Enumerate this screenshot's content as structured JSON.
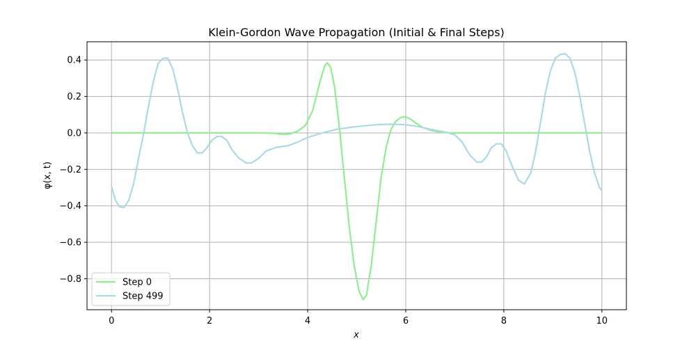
{
  "chart_data": {
    "type": "line",
    "title": "Klein-Gordon Wave Propagation (Initial & Final Steps)",
    "xlabel": "x",
    "ylabel": "φ(x, t)",
    "xlim": [
      -0.5,
      10.5
    ],
    "ylim": [
      -0.97,
      0.5
    ],
    "xticks": [
      0,
      2,
      4,
      6,
      8,
      10
    ],
    "xtick_labels": [
      "0",
      "2",
      "4",
      "6",
      "8",
      "10"
    ],
    "yticks": [
      -0.8,
      -0.6,
      -0.4,
      -0.2,
      0.0,
      0.2,
      0.4
    ],
    "ytick_labels": [
      "−0.8",
      "−0.6",
      "−0.4",
      "−0.2",
      "0.0",
      "0.2",
      "0.4"
    ],
    "grid": true,
    "legend_position": "lower-left",
    "series": [
      {
        "name": "Step 0",
        "color": "#90EE90",
        "points": [
          [
            0,
            0
          ],
          [
            1,
            0
          ],
          [
            2,
            0
          ],
          [
            3,
            0
          ],
          [
            3.3,
            -0.002
          ],
          [
            3.5,
            -0.008
          ],
          [
            3.65,
            -0.005
          ],
          [
            3.8,
            0.01
          ],
          [
            3.95,
            0.04
          ],
          [
            4.1,
            0.12
          ],
          [
            4.25,
            0.28
          ],
          [
            4.35,
            0.37
          ],
          [
            4.4,
            0.385
          ],
          [
            4.47,
            0.36
          ],
          [
            4.55,
            0.25
          ],
          [
            4.65,
            0.02
          ],
          [
            4.75,
            -0.25
          ],
          [
            4.85,
            -0.52
          ],
          [
            4.95,
            -0.73
          ],
          [
            5.05,
            -0.87
          ],
          [
            5.13,
            -0.915
          ],
          [
            5.2,
            -0.89
          ],
          [
            5.3,
            -0.72
          ],
          [
            5.4,
            -0.48
          ],
          [
            5.5,
            -0.24
          ],
          [
            5.6,
            -0.08
          ],
          [
            5.7,
            0.02
          ],
          [
            5.8,
            0.065
          ],
          [
            5.9,
            0.085
          ],
          [
            6.0,
            0.088
          ],
          [
            6.1,
            0.075
          ],
          [
            6.2,
            0.055
          ],
          [
            6.35,
            0.03
          ],
          [
            6.5,
            0.015
          ],
          [
            6.7,
            0.004
          ],
          [
            6.9,
            0
          ],
          [
            8,
            0
          ],
          [
            10,
            0
          ]
        ]
      },
      {
        "name": "Step 499",
        "color": "#ADD8E6",
        "points": [
          [
            0,
            -0.295
          ],
          [
            0.08,
            -0.37
          ],
          [
            0.16,
            -0.405
          ],
          [
            0.25,
            -0.41
          ],
          [
            0.35,
            -0.37
          ],
          [
            0.45,
            -0.28
          ],
          [
            0.55,
            -0.14
          ],
          [
            0.65,
            -0.01
          ],
          [
            0.75,
            0.14
          ],
          [
            0.85,
            0.28
          ],
          [
            0.95,
            0.38
          ],
          [
            1.05,
            0.41
          ],
          [
            1.15,
            0.41
          ],
          [
            1.25,
            0.35
          ],
          [
            1.35,
            0.24
          ],
          [
            1.45,
            0.11
          ],
          [
            1.55,
            0.0
          ],
          [
            1.65,
            -0.07
          ],
          [
            1.75,
            -0.11
          ],
          [
            1.85,
            -0.11
          ],
          [
            1.95,
            -0.08
          ],
          [
            2.05,
            -0.04
          ],
          [
            2.15,
            -0.02
          ],
          [
            2.25,
            -0.02
          ],
          [
            2.35,
            -0.04
          ],
          [
            2.45,
            -0.09
          ],
          [
            2.6,
            -0.14
          ],
          [
            2.75,
            -0.165
          ],
          [
            2.85,
            -0.165
          ],
          [
            3.0,
            -0.14
          ],
          [
            3.15,
            -0.1
          ],
          [
            3.35,
            -0.08
          ],
          [
            3.6,
            -0.07
          ],
          [
            3.8,
            -0.05
          ],
          [
            4.0,
            -0.025
          ],
          [
            4.3,
            0.0
          ],
          [
            4.6,
            0.02
          ],
          [
            5.0,
            0.035
          ],
          [
            5.4,
            0.045
          ],
          [
            5.7,
            0.048
          ],
          [
            6.0,
            0.045
          ],
          [
            6.25,
            0.035
          ],
          [
            6.5,
            0.02
          ],
          [
            6.8,
            0.005
          ],
          [
            7.0,
            -0.01
          ],
          [
            7.15,
            -0.05
          ],
          [
            7.3,
            -0.12
          ],
          [
            7.45,
            -0.16
          ],
          [
            7.55,
            -0.16
          ],
          [
            7.65,
            -0.13
          ],
          [
            7.75,
            -0.08
          ],
          [
            7.85,
            -0.06
          ],
          [
            7.95,
            -0.06
          ],
          [
            8.05,
            -0.1
          ],
          [
            8.15,
            -0.17
          ],
          [
            8.3,
            -0.26
          ],
          [
            8.42,
            -0.28
          ],
          [
            8.55,
            -0.22
          ],
          [
            8.65,
            -0.1
          ],
          [
            8.75,
            0.06
          ],
          [
            8.85,
            0.22
          ],
          [
            8.95,
            0.34
          ],
          [
            9.05,
            0.41
          ],
          [
            9.15,
            0.43
          ],
          [
            9.25,
            0.435
          ],
          [
            9.35,
            0.41
          ],
          [
            9.45,
            0.33
          ],
          [
            9.55,
            0.2
          ],
          [
            9.65,
            0.05
          ],
          [
            9.75,
            -0.1
          ],
          [
            9.85,
            -0.22
          ],
          [
            9.95,
            -0.3
          ],
          [
            10,
            -0.315
          ]
        ]
      }
    ]
  }
}
